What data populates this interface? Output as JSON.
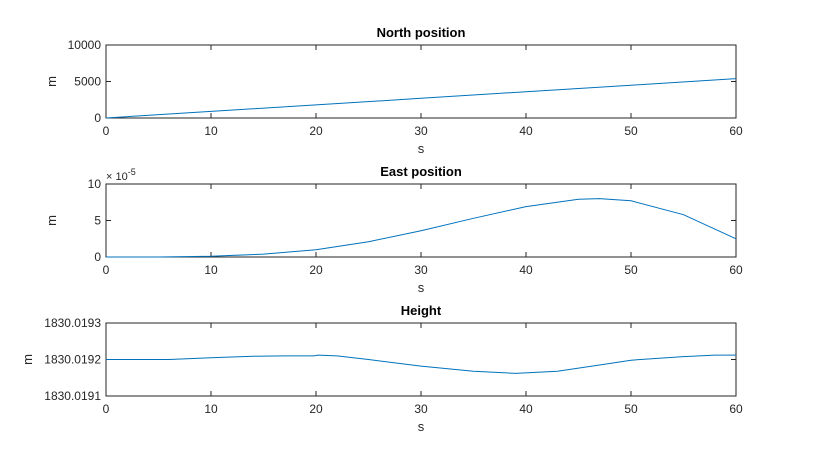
{
  "chart_data": [
    {
      "type": "line",
      "title": "North position",
      "xlabel": "s",
      "ylabel": "m",
      "xlim": [
        0,
        60
      ],
      "ylim": [
        0,
        10000
      ],
      "xticks": [
        0,
        10,
        20,
        30,
        40,
        50,
        60
      ],
      "xtick_labels": [
        "0",
        "10",
        "20",
        "30",
        "40",
        "50",
        "60"
      ],
      "yticks": [
        0,
        5000,
        10000
      ],
      "ytick_labels": [
        "0",
        "5000",
        "10000"
      ],
      "exponent_label": "",
      "grid": false,
      "line_color": "#0072bd",
      "series": [
        {
          "x": [
            0,
            10,
            20,
            30,
            40,
            50,
            60
          ],
          "y": [
            0,
            900,
            1800,
            2700,
            3600,
            4500,
            5400
          ]
        }
      ]
    },
    {
      "type": "line",
      "title": "East position",
      "xlabel": "s",
      "ylabel": "m",
      "xlim": [
        0,
        60
      ],
      "ylim": [
        0,
        10
      ],
      "xticks": [
        0,
        10,
        20,
        30,
        40,
        50,
        60
      ],
      "xtick_labels": [
        "0",
        "10",
        "20",
        "30",
        "40",
        "50",
        "60"
      ],
      "yticks": [
        0,
        5,
        10
      ],
      "ytick_labels": [
        "0",
        "5",
        "10"
      ],
      "exponent_label": "× 10",
      "exponent_power": "-5",
      "grid": false,
      "line_color": "#0072bd",
      "series": [
        {
          "x": [
            0,
            5,
            10,
            15,
            20,
            25,
            30,
            35,
            40,
            45,
            47,
            50,
            55,
            60
          ],
          "y": [
            0,
            0,
            0.1,
            0.4,
            1.0,
            2.1,
            3.6,
            5.3,
            6.9,
            7.9,
            8.0,
            7.7,
            5.8,
            2.5
          ]
        }
      ]
    },
    {
      "type": "line",
      "title": "Height",
      "xlabel": "s",
      "ylabel": "m",
      "xlim": [
        0,
        60
      ],
      "ylim": [
        1830.0191,
        1830.0193
      ],
      "xticks": [
        0,
        10,
        20,
        30,
        40,
        50,
        60
      ],
      "xtick_labels": [
        "0",
        "10",
        "20",
        "30",
        "40",
        "50",
        "60"
      ],
      "yticks": [
        1830.0191,
        1830.0192,
        1830.0193
      ],
      "ytick_labels": [
        "1830.0191",
        "1830.0192",
        "1830.0193"
      ],
      "exponent_label": "",
      "grid": false,
      "line_color": "#0072bd",
      "series": [
        {
          "x": [
            0,
            6,
            10,
            14,
            17,
            19.8,
            20.2,
            22,
            25,
            30,
            35,
            39,
            43,
            47,
            50,
            55,
            58,
            60
          ],
          "y": [
            1830.0192,
            1830.0192,
            1830.019205,
            1830.019209,
            1830.01921,
            1830.01921,
            1830.019212,
            1830.01921,
            1830.0192,
            1830.019182,
            1830.019168,
            1830.019162,
            1830.019168,
            1830.019185,
            1830.019198,
            1830.019208,
            1830.019212,
            1830.019212
          ]
        }
      ]
    }
  ]
}
